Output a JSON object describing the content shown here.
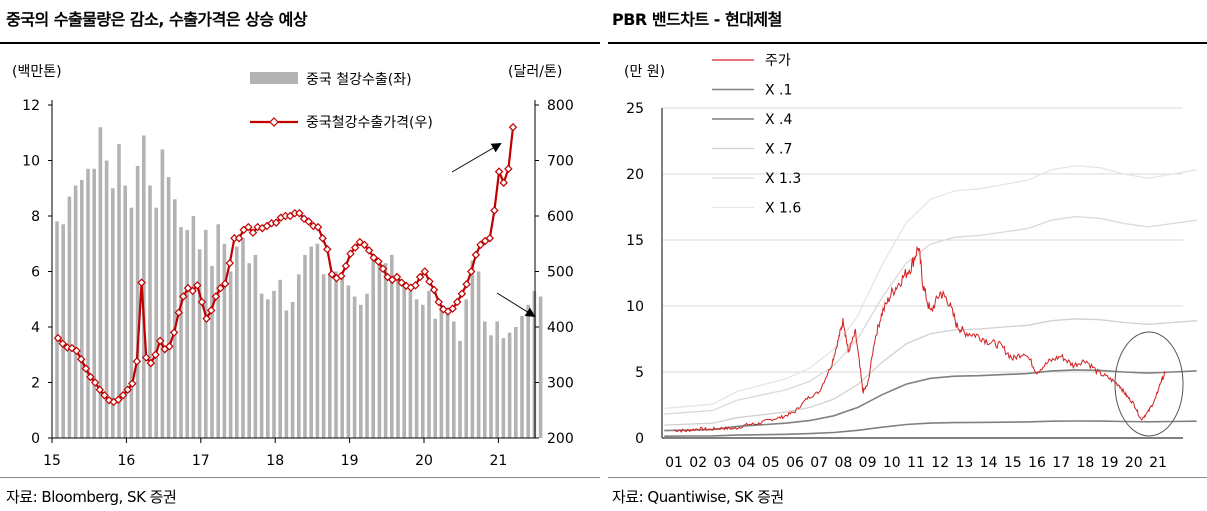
{
  "left": {
    "title": "중국의 수출물량은 감소, 수출가격은 상승 예상",
    "source": "자료: Bloomberg, SK 증권",
    "chart_data": {
      "type": "bar+line",
      "left_unit": "(백만톤)",
      "right_unit": "(달러/톤)",
      "left_ylim": [
        0,
        12
      ],
      "left_ticks": [
        "0",
        "2",
        "4",
        "6",
        "8",
        "10",
        "12"
      ],
      "right_ylim": [
        200,
        800
      ],
      "right_ticks": [
        "200",
        "300",
        "400",
        "500",
        "600",
        "700",
        "800"
      ],
      "x_ticks": [
        "15",
        "16",
        "17",
        "18",
        "19",
        "20",
        "21"
      ],
      "x_start_year": 15,
      "legend": [
        "중국 철강수출(좌)",
        "중국철강수출가격(우)"
      ],
      "series": [
        {
          "name": "중국 철강수출(좌)",
          "type": "bar",
          "color": "#b3b3b3",
          "values": [
            7.8,
            7.7,
            8.7,
            9.1,
            9.3,
            9.7,
            9.7,
            11.2,
            10.0,
            9.0,
            10.6,
            9.1,
            8.3,
            9.8,
            10.9,
            9.1,
            8.3,
            10.4,
            9.4,
            8.6,
            7.6,
            7.5,
            8.0,
            6.8,
            7.5,
            6.2,
            7.7,
            7.0,
            6.0,
            6.9,
            7.2,
            6.3,
            6.6,
            5.2,
            5.0,
            5.3,
            5.7,
            4.6,
            4.9,
            5.9,
            6.6,
            6.9,
            7.0,
            5.9,
            5.9,
            6.0,
            5.8,
            5.5,
            5.1,
            4.8,
            5.2,
            6.5,
            6.4,
            6.3,
            6.6,
            5.8,
            5.5,
            5.3,
            5.0,
            4.8,
            5.3,
            4.3,
            4.8,
            4.5,
            4.2,
            3.5,
            5.0,
            6.4,
            6.0,
            4.2,
            3.7,
            4.2,
            3.6,
            3.8,
            4.0,
            4.4,
            4.8,
            5.3,
            5.1
          ]
        },
        {
          "name": "중국철강수출가격(우)",
          "type": "line",
          "color": "#c00000",
          "values": [
            380,
            370,
            363,
            362,
            357,
            342,
            325,
            310,
            300,
            287,
            277,
            268,
            265,
            269,
            277,
            287,
            298,
            338,
            480,
            345,
            335,
            350,
            375,
            360,
            365,
            390,
            426,
            455,
            470,
            465,
            475,
            445,
            415,
            430,
            455,
            470,
            478,
            515,
            560,
            560,
            575,
            580,
            570,
            580,
            578,
            582,
            587,
            588,
            597,
            600,
            600,
            605,
            605,
            595,
            590,
            582,
            580,
            560,
            540,
            495,
            488,
            492,
            510,
            532,
            543,
            553,
            548,
            538,
            525,
            518,
            505,
            490,
            485,
            490,
            480,
            474,
            471,
            475,
            490,
            500,
            482,
            467,
            445,
            432,
            428,
            433,
            445,
            460,
            477,
            500,
            530,
            548,
            555,
            560,
            610,
            680,
            660,
            685,
            760
          ]
        }
      ],
      "annotations": [
        "arrow-up",
        "arrow-down"
      ]
    }
  },
  "right": {
    "title": "PBR 밴드차트 - 현대제철",
    "source": "자료: Quantiwise, SK 증권",
    "chart_data": {
      "type": "line",
      "ylabel": "(만 원)",
      "ylim": [
        0,
        25
      ],
      "y_ticks": [
        "0",
        "5",
        "10",
        "15",
        "20",
        "25"
      ],
      "x_ticks": [
        "01",
        "02",
        "03",
        "04",
        "05",
        "06",
        "07",
        "08",
        "09",
        "10",
        "11",
        "12",
        "13",
        "14",
        "15",
        "16",
        "17",
        "18",
        "19",
        "20",
        "21"
      ],
      "legend": [
        "주가",
        "X .1",
        "X .4",
        "X .7",
        "X 1.3",
        "X 1.6"
      ],
      "bps_per_year": [
        1.4,
        1.5,
        1.6,
        2.2,
        2.5,
        2.8,
        3.3,
        4.2,
        5.8,
        8.2,
        10.2,
        11.3,
        11.7,
        11.8,
        12.0,
        12.2,
        12.7,
        12.9,
        12.8,
        12.5,
        12.3,
        12.5,
        12.7
      ],
      "bands": [
        {
          "name": "X .1",
          "multiple": 0.1,
          "color": "#808080"
        },
        {
          "name": "X .4",
          "multiple": 0.4,
          "color": "#808080"
        },
        {
          "name": "X .7",
          "multiple": 0.7,
          "color": "#d0d0d0"
        },
        {
          "name": "X 1.3",
          "multiple": 1.3,
          "color": "#d9d9d9"
        },
        {
          "name": "X 1.6",
          "multiple": 1.6,
          "color": "#e6e6e6"
        }
      ],
      "price": {
        "name": "주가",
        "color": "#d22020",
        "points": [
          [
            2001,
            0.6
          ],
          [
            2001.5,
            0.55
          ],
          [
            2002,
            0.7
          ],
          [
            2002.5,
            0.65
          ],
          [
            2003,
            0.75
          ],
          [
            2003.5,
            0.7
          ],
          [
            2004,
            1.0
          ],
          [
            2004.5,
            1.1
          ],
          [
            2005,
            1.4
          ],
          [
            2005.5,
            1.6
          ],
          [
            2006,
            2.0
          ],
          [
            2006.5,
            3.0
          ],
          [
            2007,
            3.5
          ],
          [
            2007.5,
            5.5
          ],
          [
            2007.8,
            7.5
          ],
          [
            2008,
            9.0
          ],
          [
            2008.2,
            6.5
          ],
          [
            2008.5,
            8.0
          ],
          [
            2008.8,
            3.5
          ],
          [
            2009,
            4.0
          ],
          [
            2009.3,
            7.5
          ],
          [
            2009.6,
            9.5
          ],
          [
            2010,
            11.0
          ],
          [
            2010.4,
            12.0
          ],
          [
            2010.8,
            13.0
          ],
          [
            2011.1,
            14.5
          ],
          [
            2011.3,
            11.5
          ],
          [
            2011.6,
            9.5
          ],
          [
            2012,
            11.0
          ],
          [
            2012.3,
            10.5
          ],
          [
            2012.7,
            8.5
          ],
          [
            2013,
            8.0
          ],
          [
            2013.5,
            7.8
          ],
          [
            2014,
            7.3
          ],
          [
            2014.5,
            7.0
          ],
          [
            2015,
            6.0
          ],
          [
            2015.5,
            6.5
          ],
          [
            2016,
            5.0
          ],
          [
            2016.5,
            5.8
          ],
          [
            2017,
            6.2
          ],
          [
            2017.5,
            5.5
          ],
          [
            2018,
            5.9
          ],
          [
            2018.5,
            5.0
          ],
          [
            2019,
            4.5
          ],
          [
            2019.4,
            4.0
          ],
          [
            2019.7,
            3.2
          ],
          [
            2020,
            2.6
          ],
          [
            2020.3,
            1.4
          ],
          [
            2020.6,
            2.0
          ],
          [
            2020.9,
            3.0
          ],
          [
            2021.1,
            4.2
          ],
          [
            2021.3,
            4.9
          ]
        ]
      },
      "annotations": [
        "circle-highlight"
      ]
    }
  }
}
